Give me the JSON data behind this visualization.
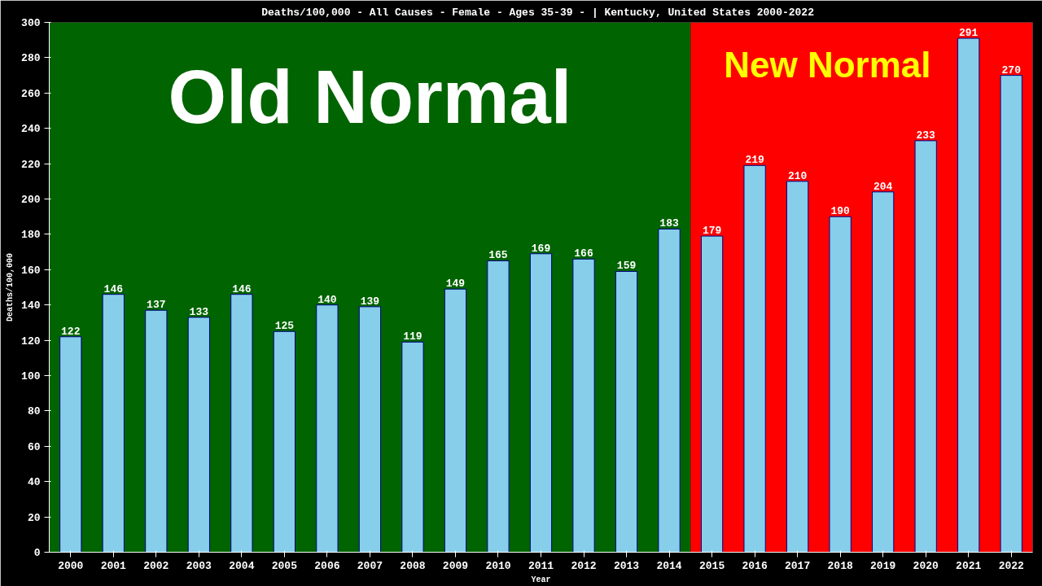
{
  "chart_data": {
    "type": "bar",
    "title": "Deaths/100,000 - All Causes - Female - Ages 35-39 -  | Kentucky, United States 2000-2022",
    "xlabel": "Year",
    "ylabel": "Deaths/100,000",
    "categories": [
      "2000",
      "2001",
      "2002",
      "2003",
      "2004",
      "2005",
      "2006",
      "2007",
      "2008",
      "2009",
      "2010",
      "2011",
      "2012",
      "2013",
      "2014",
      "2015",
      "2016",
      "2017",
      "2018",
      "2019",
      "2020",
      "2021",
      "2022"
    ],
    "values": [
      122,
      146,
      137,
      133,
      146,
      125,
      140,
      139,
      119,
      149,
      165,
      169,
      166,
      159,
      183,
      179,
      219,
      210,
      190,
      204,
      233,
      291,
      270
    ],
    "color": "#87ceeb",
    "data_labels": true,
    "grid": false,
    "ylim": [
      0,
      300
    ],
    "yticks": [
      0,
      20,
      40,
      60,
      80,
      100,
      120,
      140,
      160,
      180,
      200,
      220,
      240,
      260,
      280,
      300
    ],
    "bands": [
      {
        "axis": "x",
        "from": "2000",
        "to": "2014",
        "label": "Old Normal",
        "color": "#006400"
      },
      {
        "axis": "x",
        "from": "2015",
        "to": "2022",
        "label": "New Normal",
        "color": "#ff0000"
      }
    ]
  }
}
